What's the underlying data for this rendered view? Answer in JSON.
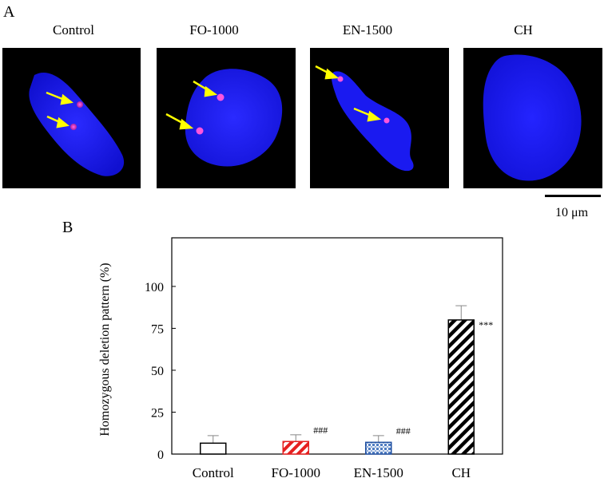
{
  "panel_a": {
    "letter": "A",
    "images": [
      {
        "label": "Control"
      },
      {
        "label": "FO-1000"
      },
      {
        "label": "EN-1500"
      },
      {
        "label": "CH"
      }
    ],
    "scale_bar_label": "10 μm",
    "colors": {
      "nucleus": "#1f1fff",
      "signal": "#ff33cc",
      "arrow": "#ffff00",
      "background": "#000000"
    }
  },
  "panel_b": {
    "letter": "B"
  },
  "chart_data": {
    "type": "bar",
    "categories": [
      "Control",
      "FO-1000",
      "EN-1500",
      "CH"
    ],
    "values": [
      6.5,
      7.5,
      7.0,
      80.0
    ],
    "errors": [
      4.5,
      4.0,
      4.0,
      8.5
    ],
    "annotations": [
      "",
      "###",
      "###",
      "***"
    ],
    "patterns": [
      "none",
      "red-diagonal",
      "blue-crosshatch",
      "black-diagonal"
    ],
    "ylabel": "Homozygous deletion pattern  (%)",
    "yticks": [
      0,
      25,
      50,
      75,
      100
    ],
    "ylim": [
      0,
      129
    ]
  }
}
